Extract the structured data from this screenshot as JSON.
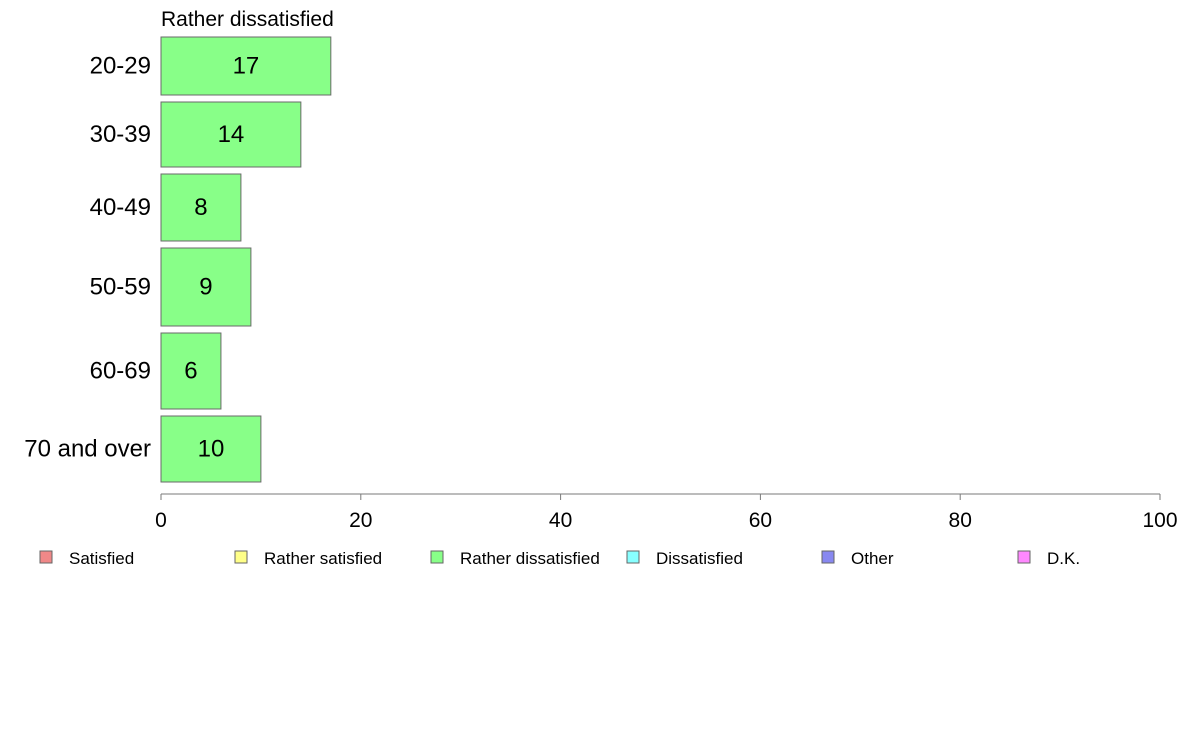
{
  "chart_data": {
    "type": "bar",
    "orientation": "horizontal",
    "title": "Rather dissatisfied",
    "categories": [
      "20-29",
      "30-39",
      "40-49",
      "50-59",
      "60-69",
      "70 and over"
    ],
    "series": [
      {
        "name": "Rather dissatisfied",
        "values": [
          17,
          14,
          8,
          9,
          6,
          10
        ],
        "color": "#88ff88"
      }
    ],
    "xlim": [
      0,
      100
    ],
    "xticks": [
      0,
      20,
      40,
      60,
      80,
      100
    ],
    "grid": false,
    "legend": {
      "placement": "bottom",
      "items": [
        {
          "label": "Satisfied",
          "color": "#f08888"
        },
        {
          "label": "Rather satisfied",
          "color": "#ffff88"
        },
        {
          "label": "Rather dissatisfied",
          "color": "#88ff88"
        },
        {
          "label": "Dissatisfied",
          "color": "#88ffff"
        },
        {
          "label": "Other",
          "color": "#8888f0"
        },
        {
          "label": "D.K.",
          "color": "#ff88ff"
        }
      ]
    }
  }
}
